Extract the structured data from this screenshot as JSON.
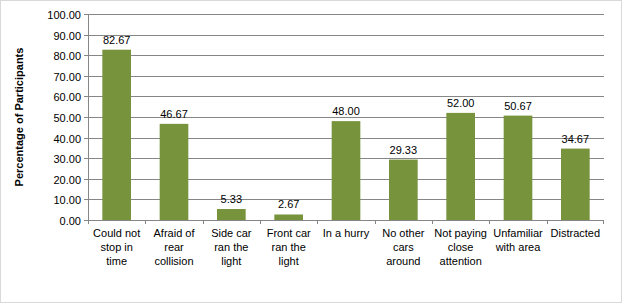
{
  "chart_data": {
    "type": "bar",
    "y_label": "Percentage of Participants",
    "categories": [
      "Could not stop in time",
      "Afraid of rear collision",
      "Side car ran the light",
      "Front car ran the light",
      "In a hurry",
      "No other cars around",
      "Not paying close attention",
      "Unfamiliar with area",
      "Distracted"
    ],
    "values": [
      82.67,
      46.67,
      5.33,
      2.67,
      48.0,
      29.33,
      52.0,
      50.67,
      34.67
    ],
    "value_labels": [
      "82.67",
      "46.67",
      "5.33",
      "2.67",
      "48.00",
      "29.33",
      "52.00",
      "50.67",
      "34.67"
    ],
    "color": "#77933c",
    "ylim": [
      0,
      100
    ],
    "yticks": [
      {
        "value": 0,
        "label": "0.00"
      },
      {
        "value": 10,
        "label": "10.00"
      },
      {
        "value": 20,
        "label": "20.00"
      },
      {
        "value": 30,
        "label": "30.00"
      },
      {
        "value": 40,
        "label": "40.00"
      },
      {
        "value": 50,
        "label": "50.00"
      },
      {
        "value": 60,
        "label": "60.00"
      },
      {
        "value": 70,
        "label": "70.00"
      },
      {
        "value": 80,
        "label": "80.00"
      },
      {
        "value": 90,
        "label": "90.00"
      },
      {
        "value": 100,
        "label": "100.00"
      }
    ],
    "grid": true,
    "data_labels": true
  }
}
